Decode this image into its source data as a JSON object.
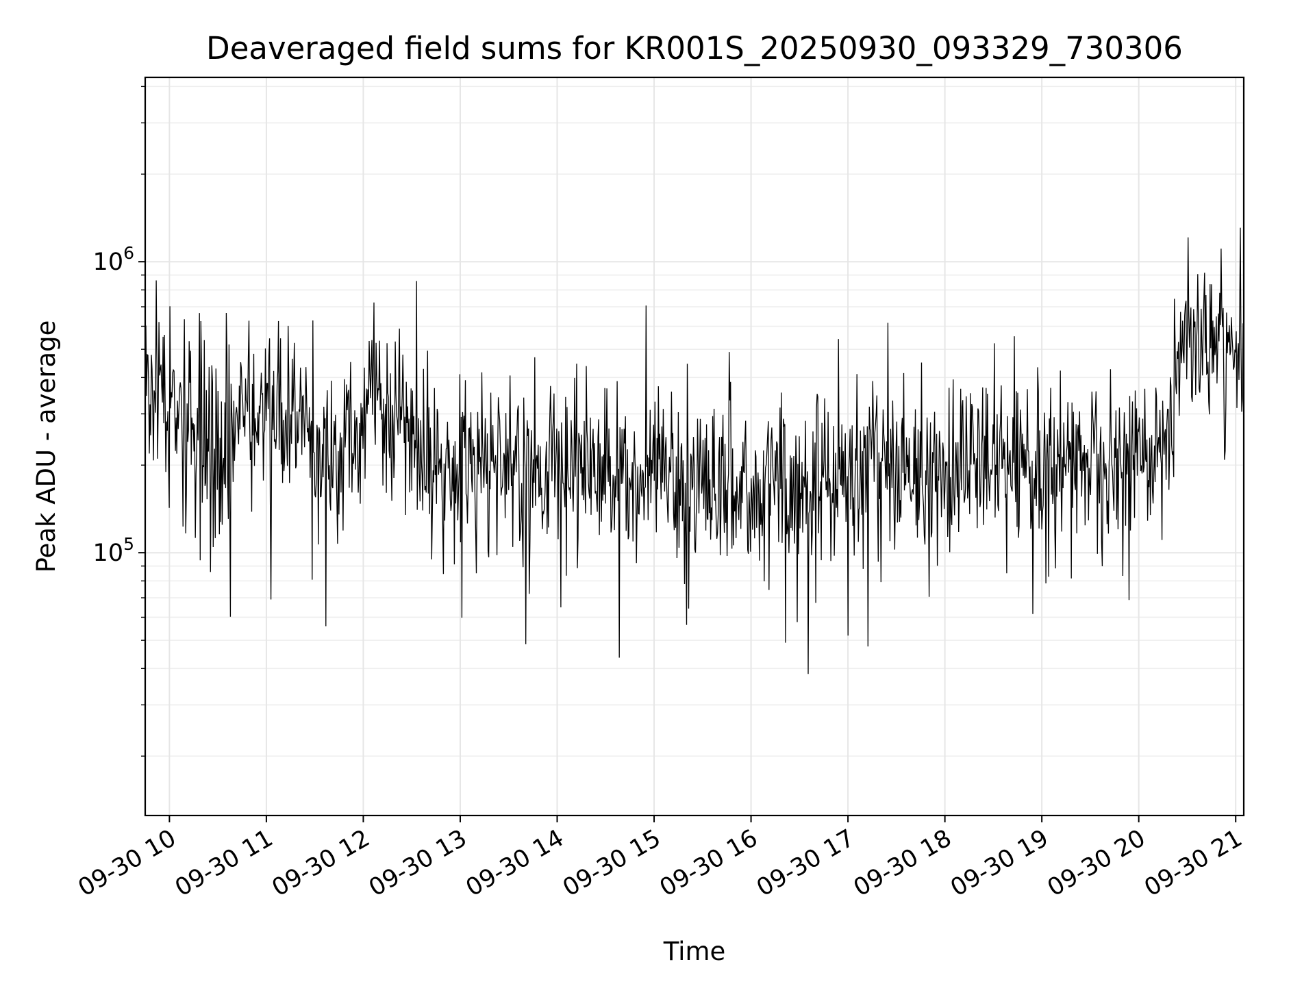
{
  "chart_data": {
    "type": "line",
    "title": "Deaveraged field sums for KR001S_20250930_093329_730306",
    "xlabel": "Time",
    "ylabel": "Peak ADU - average",
    "yscale": "log",
    "ylim": [
      12500,
      4300000
    ],
    "xlim": [
      "09-30 09:45",
      "09-30 21:05"
    ],
    "grid": true,
    "x_tick_labels": [
      "09-30 10",
      "09-30 11",
      "09-30 12",
      "09-30 13",
      "09-30 14",
      "09-30 15",
      "09-30 16",
      "09-30 17",
      "09-30 18",
      "09-30 19",
      "09-30 20",
      "09-30 21"
    ],
    "y_tick_labels": [
      {
        "value": 100000,
        "base": "10",
        "exp": "5"
      },
      {
        "value": 1000000,
        "base": "10",
        "exp": "6"
      }
    ],
    "series": [
      {
        "color": "#000000",
        "x": [
          "09-30 09:45",
          "09-30 10:00",
          "09-30 10:15",
          "09-30 10:30",
          "09-30 10:45",
          "09-30 11:00",
          "09-30 11:15",
          "09-30 11:30",
          "09-30 11:45",
          "09-30 12:00",
          "09-30 12:15",
          "09-30 12:30",
          "09-30 12:45",
          "09-30 13:00",
          "09-30 13:15",
          "09-30 13:30",
          "09-30 13:45",
          "09-30 14:00",
          "09-30 14:15",
          "09-30 14:30",
          "09-30 14:45",
          "09-30 15:00",
          "09-30 15:15",
          "09-30 15:30",
          "09-30 15:45",
          "09-30 16:00",
          "09-30 16:15",
          "09-30 16:30",
          "09-30 16:45",
          "09-30 17:00",
          "09-30 17:15",
          "09-30 17:30",
          "09-30 17:45",
          "09-30 18:00",
          "09-30 18:15",
          "09-30 18:30",
          "09-30 18:45",
          "09-30 19:00",
          "09-30 19:15",
          "09-30 19:30",
          "09-30 19:45",
          "09-30 20:00",
          "09-30 20:15",
          "09-30 20:30",
          "09-30 20:45",
          "09-30 21:00"
        ],
        "y": [
          350000,
          320000,
          250000,
          230000,
          310000,
          280000,
          300000,
          200000,
          220000,
          300000,
          320000,
          250000,
          210000,
          190000,
          200000,
          210000,
          205000,
          200000,
          200000,
          190000,
          185000,
          180000,
          170000,
          165000,
          160000,
          165000,
          175000,
          180000,
          180000,
          185000,
          190000,
          195000,
          200000,
          205000,
          210000,
          205000,
          200000,
          195000,
          200000,
          195000,
          200000,
          210000,
          230000,
          550000,
          560000,
          520000
        ]
      }
    ]
  }
}
